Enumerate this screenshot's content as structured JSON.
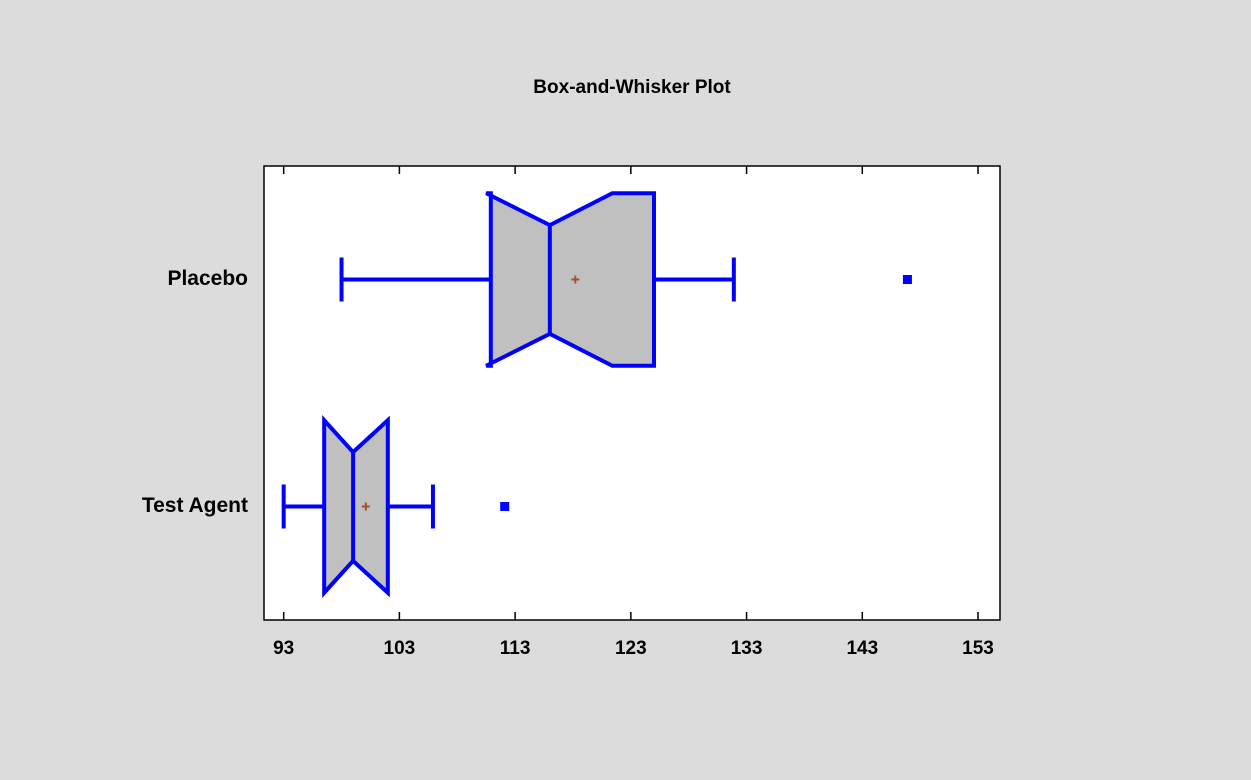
{
  "chart_data": {
    "type": "box",
    "title": "Box-and-Whisker Plot",
    "orientation": "horizontal",
    "notched": true,
    "categories": [
      "Placebo",
      "Test Agent"
    ],
    "boxes": [
      {
        "whislo": 98.0,
        "q1": 110.9,
        "med": 116.0,
        "q3": 125.0,
        "whishi": 131.9,
        "mean": 118.2,
        "notch_lo": 110.5,
        "notch_hi": 121.4,
        "fliers": [
          146.9
        ]
      },
      {
        "whislo": 93.0,
        "q1": 96.5,
        "med": 99.0,
        "q3": 102.0,
        "whishi": 105.9,
        "mean": 100.1,
        "notch_lo": 96.5,
        "notch_hi": 102.0,
        "fliers": [
          112.1
        ]
      }
    ],
    "xlim": [
      91.3,
      154.9
    ],
    "xticks": [
      93,
      103,
      113,
      123,
      133,
      143,
      153
    ],
    "box_color": "#c0c0c0",
    "line_color": "#0000ff",
    "mean_color": "#a0522d",
    "grid": false
  }
}
